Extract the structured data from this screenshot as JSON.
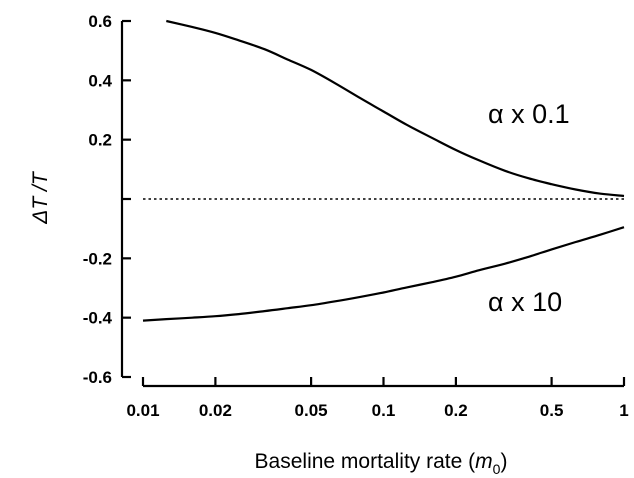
{
  "chart_data": {
    "type": "line",
    "xlabel_prefix": "Baseline mortality rate (",
    "xlabel_var": "m",
    "xlabel_sub": "0",
    "xlabel_suffix": ")",
    "ylabel": "ΔT /T",
    "x_scale": "log",
    "xlim": [
      0.01,
      1
    ],
    "ylim": [
      -0.6,
      0.6
    ],
    "x_ticks": [
      {
        "value": 0.01,
        "label": "0.01"
      },
      {
        "value": 0.02,
        "label": "0.02"
      },
      {
        "value": 0.05,
        "label": "0.05"
      },
      {
        "value": 0.1,
        "label": "0.1"
      },
      {
        "value": 0.2,
        "label": "0.2"
      },
      {
        "value": 0.5,
        "label": "0.5"
      },
      {
        "value": 1,
        "label": "1"
      }
    ],
    "y_ticks": [
      {
        "value": 0.6,
        "label": "0.6"
      },
      {
        "value": 0.4,
        "label": "0.4"
      },
      {
        "value": 0.2,
        "label": "0.2"
      },
      {
        "value": 0,
        "label": ""
      },
      {
        "value": -0.2,
        "label": "-0.2"
      },
      {
        "value": -0.4,
        "label": "-0.4"
      },
      {
        "value": -0.6,
        "label": "-0.6"
      }
    ],
    "grid": false,
    "reference_line": {
      "y": 0,
      "style": "dotted"
    },
    "series": [
      {
        "name": "α x 0.1",
        "x": [
          0.0125,
          0.016,
          0.02,
          0.025,
          0.032,
          0.04,
          0.05,
          0.063,
          0.08,
          0.1,
          0.125,
          0.16,
          0.2,
          0.25,
          0.32,
          0.4,
          0.5,
          0.63,
          0.8,
          1.0
        ],
        "y": [
          0.6,
          0.58,
          0.56,
          0.535,
          0.505,
          0.47,
          0.435,
          0.39,
          0.34,
          0.295,
          0.25,
          0.205,
          0.165,
          0.13,
          0.095,
          0.07,
          0.05,
          0.032,
          0.018,
          0.01
        ]
      },
      {
        "name": "α x 10",
        "x": [
          0.01,
          0.0125,
          0.016,
          0.02,
          0.025,
          0.032,
          0.04,
          0.05,
          0.063,
          0.08,
          0.1,
          0.125,
          0.16,
          0.2,
          0.25,
          0.32,
          0.4,
          0.5,
          0.63,
          0.8,
          1.0
        ],
        "y": [
          -0.41,
          -0.405,
          -0.4,
          -0.395,
          -0.388,
          -0.378,
          -0.368,
          -0.358,
          -0.345,
          -0.33,
          -0.315,
          -0.298,
          -0.28,
          -0.262,
          -0.24,
          -0.218,
          -0.195,
          -0.17,
          -0.145,
          -0.12,
          -0.095
        ]
      }
    ]
  }
}
